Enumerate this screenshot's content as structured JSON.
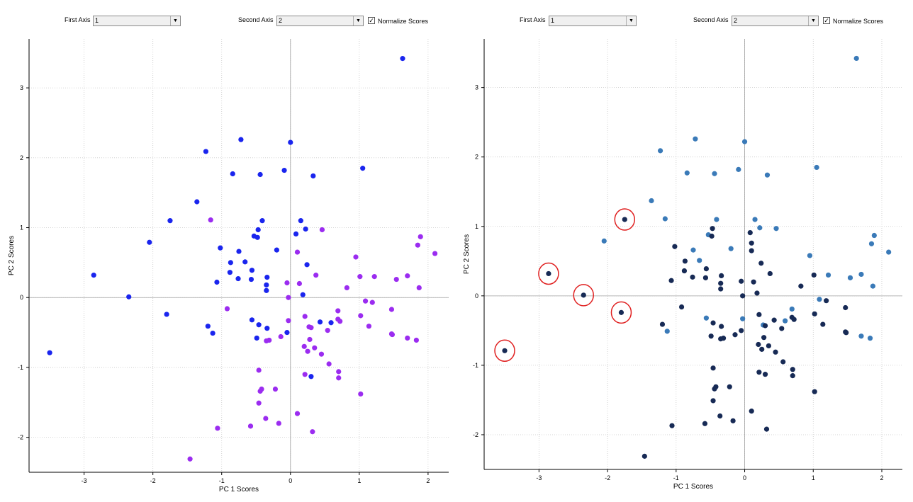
{
  "panels": [
    {
      "controls": {
        "first_axis_label": "First Axis",
        "first_axis_value": "1",
        "second_axis_label": "Second Axis",
        "second_axis_value": "2",
        "normalize_label": "Normalize Scores",
        "normalize_checked": true
      }
    },
    {
      "controls": {
        "first_axis_label": "First Axis",
        "first_axis_value": "1",
        "second_axis_label": "Second Axis",
        "second_axis_value": "2",
        "normalize_label": "Normalize Scores",
        "normalize_checked": true
      }
    }
  ],
  "chart_data": [
    {
      "type": "scatter",
      "title": "",
      "xlabel": "PC 1 Scores",
      "ylabel": "PC 2 Scores",
      "xlim": [
        -3.8,
        2.3
      ],
      "ylim": [
        -2.5,
        3.7
      ],
      "xticks": [
        -3,
        -2,
        -1,
        0,
        1,
        2
      ],
      "yticks": [
        -2,
        -1,
        0,
        1,
        2,
        3
      ],
      "grid": true,
      "colors": {
        "group_a": "#1a25ee",
        "group_b": "#9b2cf0"
      },
      "points": [
        {
          "x": 1.63,
          "y": 3.42,
          "g": "a"
        },
        {
          "x": -0.72,
          "y": 2.26,
          "g": "a"
        },
        {
          "x": 0.0,
          "y": 2.22,
          "g": "a"
        },
        {
          "x": -1.23,
          "y": 2.09,
          "g": "a"
        },
        {
          "x": 1.05,
          "y": 1.85,
          "g": "a"
        },
        {
          "x": -0.84,
          "y": 1.77,
          "g": "a"
        },
        {
          "x": -0.44,
          "y": 1.76,
          "g": "a"
        },
        {
          "x": -0.09,
          "y": 1.82,
          "g": "a"
        },
        {
          "x": 0.33,
          "y": 1.74,
          "g": "a"
        },
        {
          "x": -1.36,
          "y": 1.37,
          "g": "a"
        },
        {
          "x": -1.75,
          "y": 1.1,
          "g": "a"
        },
        {
          "x": -0.41,
          "y": 1.1,
          "g": "a"
        },
        {
          "x": 0.15,
          "y": 1.1,
          "g": "a"
        },
        {
          "x": -0.47,
          "y": 0.97,
          "g": "a"
        },
        {
          "x": 0.22,
          "y": 0.98,
          "g": "a"
        },
        {
          "x": 0.08,
          "y": 0.91,
          "g": "a"
        },
        {
          "x": -0.53,
          "y": 0.88,
          "g": "a"
        },
        {
          "x": -0.48,
          "y": 0.86,
          "g": "a"
        },
        {
          "x": -2.05,
          "y": 0.79,
          "g": "a"
        },
        {
          "x": -1.02,
          "y": 0.71,
          "g": "a"
        },
        {
          "x": -0.2,
          "y": 0.68,
          "g": "a"
        },
        {
          "x": -0.75,
          "y": 0.66,
          "g": "a"
        },
        {
          "x": -0.66,
          "y": 0.51,
          "g": "a"
        },
        {
          "x": -0.87,
          "y": 0.5,
          "g": "a"
        },
        {
          "x": 0.24,
          "y": 0.47,
          "g": "a"
        },
        {
          "x": -0.56,
          "y": 0.39,
          "g": "a"
        },
        {
          "x": -0.88,
          "y": 0.36,
          "g": "a"
        },
        {
          "x": -2.86,
          "y": 0.32,
          "g": "a"
        },
        {
          "x": -0.34,
          "y": 0.29,
          "g": "a"
        },
        {
          "x": -0.76,
          "y": 0.27,
          "g": "a"
        },
        {
          "x": -0.57,
          "y": 0.26,
          "g": "a"
        },
        {
          "x": -1.07,
          "y": 0.22,
          "g": "a"
        },
        {
          "x": -0.35,
          "y": 0.18,
          "g": "a"
        },
        {
          "x": -0.35,
          "y": 0.1,
          "g": "a"
        },
        {
          "x": 0.18,
          "y": 0.04,
          "g": "a"
        },
        {
          "x": -2.35,
          "y": 0.01,
          "g": "a"
        },
        {
          "x": -1.8,
          "y": -0.24,
          "g": "a"
        },
        {
          "x": -0.56,
          "y": -0.32,
          "g": "a"
        },
        {
          "x": 0.43,
          "y": -0.35,
          "g": "a"
        },
        {
          "x": 0.59,
          "y": -0.36,
          "g": "a"
        },
        {
          "x": -0.46,
          "y": -0.39,
          "g": "a"
        },
        {
          "x": -1.2,
          "y": -0.41,
          "g": "a"
        },
        {
          "x": -0.34,
          "y": -0.44,
          "g": "a"
        },
        {
          "x": -0.05,
          "y": -0.5,
          "g": "a"
        },
        {
          "x": -1.13,
          "y": -0.51,
          "g": "a"
        },
        {
          "x": -0.49,
          "y": -0.58,
          "g": "a"
        },
        {
          "x": -3.5,
          "y": -0.79,
          "g": "a"
        },
        {
          "x": 0.3,
          "y": -1.13,
          "g": "a"
        },
        {
          "x": -1.16,
          "y": 1.11,
          "g": "b"
        },
        {
          "x": 0.46,
          "y": 0.97,
          "g": "b"
        },
        {
          "x": 1.89,
          "y": 0.87,
          "g": "b"
        },
        {
          "x": 1.85,
          "y": 0.75,
          "g": "b"
        },
        {
          "x": 0.1,
          "y": 0.65,
          "g": "b"
        },
        {
          "x": 2.1,
          "y": 0.63,
          "g": "b"
        },
        {
          "x": 0.95,
          "y": 0.58,
          "g": "b"
        },
        {
          "x": 0.37,
          "y": 0.32,
          "g": "b"
        },
        {
          "x": 1.7,
          "y": 0.31,
          "g": "b"
        },
        {
          "x": 1.01,
          "y": 0.3,
          "g": "b"
        },
        {
          "x": 1.22,
          "y": 0.3,
          "g": "b"
        },
        {
          "x": 1.54,
          "y": 0.26,
          "g": "b"
        },
        {
          "x": -0.05,
          "y": 0.21,
          "g": "b"
        },
        {
          "x": 0.13,
          "y": 0.2,
          "g": "b"
        },
        {
          "x": 0.82,
          "y": 0.14,
          "g": "b"
        },
        {
          "x": 1.87,
          "y": 0.14,
          "g": "b"
        },
        {
          "x": -0.03,
          "y": 0.0,
          "g": "b"
        },
        {
          "x": 1.09,
          "y": -0.05,
          "g": "b"
        },
        {
          "x": 1.19,
          "y": -0.07,
          "g": "b"
        },
        {
          "x": -0.92,
          "y": -0.16,
          "g": "b"
        },
        {
          "x": 1.47,
          "y": -0.17,
          "g": "b"
        },
        {
          "x": 0.69,
          "y": -0.19,
          "g": "b"
        },
        {
          "x": 1.02,
          "y": -0.26,
          "g": "b"
        },
        {
          "x": 0.21,
          "y": -0.27,
          "g": "b"
        },
        {
          "x": 0.69,
          "y": -0.31,
          "g": "b"
        },
        {
          "x": -0.03,
          "y": -0.33,
          "g": "b"
        },
        {
          "x": 0.72,
          "y": -0.34,
          "g": "b"
        },
        {
          "x": 0.27,
          "y": -0.42,
          "g": "b"
        },
        {
          "x": 0.3,
          "y": -0.43,
          "g": "b"
        },
        {
          "x": 1.14,
          "y": -0.41,
          "g": "b"
        },
        {
          "x": 0.54,
          "y": -0.47,
          "g": "b"
        },
        {
          "x": 1.47,
          "y": -0.52,
          "g": "b"
        },
        {
          "x": 1.48,
          "y": -0.53,
          "g": "b"
        },
        {
          "x": -0.14,
          "y": -0.56,
          "g": "b"
        },
        {
          "x": 1.7,
          "y": -0.58,
          "g": "b"
        },
        {
          "x": 0.28,
          "y": -0.6,
          "g": "b"
        },
        {
          "x": 1.83,
          "y": -0.61,
          "g": "b"
        },
        {
          "x": -0.31,
          "y": -0.61,
          "g": "b"
        },
        {
          "x": -0.35,
          "y": -0.62,
          "g": "b"
        },
        {
          "x": 0.2,
          "y": -0.7,
          "g": "b"
        },
        {
          "x": 0.35,
          "y": -0.72,
          "g": "b"
        },
        {
          "x": 0.25,
          "y": -0.77,
          "g": "b"
        },
        {
          "x": 0.45,
          "y": -0.81,
          "g": "b"
        },
        {
          "x": 0.56,
          "y": -0.95,
          "g": "b"
        },
        {
          "x": -0.46,
          "y": -1.04,
          "g": "b"
        },
        {
          "x": 0.7,
          "y": -1.06,
          "g": "b"
        },
        {
          "x": 0.21,
          "y": -1.1,
          "g": "b"
        },
        {
          "x": 0.7,
          "y": -1.15,
          "g": "b"
        },
        {
          "x": -0.22,
          "y": -1.31,
          "g": "b"
        },
        {
          "x": -0.42,
          "y": -1.31,
          "g": "b"
        },
        {
          "x": -0.44,
          "y": -1.34,
          "g": "b"
        },
        {
          "x": 1.02,
          "y": -1.38,
          "g": "b"
        },
        {
          "x": -0.46,
          "y": -1.51,
          "g": "b"
        },
        {
          "x": 0.1,
          "y": -1.66,
          "g": "b"
        },
        {
          "x": -0.36,
          "y": -1.73,
          "g": "b"
        },
        {
          "x": -0.17,
          "y": -1.8,
          "g": "b"
        },
        {
          "x": -0.58,
          "y": -1.84,
          "g": "b"
        },
        {
          "x": -1.06,
          "y": -1.87,
          "g": "b"
        },
        {
          "x": 0.32,
          "y": -1.92,
          "g": "b"
        },
        {
          "x": -1.46,
          "y": -2.31,
          "g": "b"
        }
      ]
    },
    {
      "type": "scatter",
      "title": "",
      "xlabel": "PC 1 Scores",
      "ylabel": "PC 2 Scores",
      "xlim": [
        -3.8,
        2.3
      ],
      "ylim": [
        -2.5,
        3.7
      ],
      "xticks": [
        -3,
        -2,
        -1,
        0,
        1,
        2
      ],
      "yticks": [
        -2,
        -1,
        0,
        1,
        2,
        3
      ],
      "grid": true,
      "colors": {
        "group_a": "#3a7ab8",
        "group_b": "#172a55",
        "circle": "#e02020"
      },
      "points": [
        {
          "x": 1.63,
          "y": 3.42,
          "g": "a"
        },
        {
          "x": -0.72,
          "y": 2.26,
          "g": "a"
        },
        {
          "x": 0.0,
          "y": 2.22,
          "g": "a"
        },
        {
          "x": -1.23,
          "y": 2.09,
          "g": "a"
        },
        {
          "x": 1.05,
          "y": 1.85,
          "g": "a"
        },
        {
          "x": -0.84,
          "y": 1.77,
          "g": "a"
        },
        {
          "x": -0.44,
          "y": 1.76,
          "g": "a"
        },
        {
          "x": -0.09,
          "y": 1.82,
          "g": "a"
        },
        {
          "x": 0.33,
          "y": 1.74,
          "g": "a"
        },
        {
          "x": -1.36,
          "y": 1.37,
          "g": "a"
        },
        {
          "x": -1.16,
          "y": 1.11,
          "g": "a"
        },
        {
          "x": -0.41,
          "y": 1.1,
          "g": "a"
        },
        {
          "x": 0.15,
          "y": 1.1,
          "g": "a"
        },
        {
          "x": 0.46,
          "y": 0.97,
          "g": "a"
        },
        {
          "x": 0.22,
          "y": 0.98,
          "g": "a"
        },
        {
          "x": -0.53,
          "y": 0.88,
          "g": "a"
        },
        {
          "x": 1.89,
          "y": 0.87,
          "g": "a"
        },
        {
          "x": -2.05,
          "y": 0.79,
          "g": "a"
        },
        {
          "x": 1.85,
          "y": 0.75,
          "g": "a"
        },
        {
          "x": -0.2,
          "y": 0.68,
          "g": "a"
        },
        {
          "x": -0.75,
          "y": 0.66,
          "g": "a"
        },
        {
          "x": 2.1,
          "y": 0.63,
          "g": "a"
        },
        {
          "x": 0.95,
          "y": 0.58,
          "g": "a"
        },
        {
          "x": -0.66,
          "y": 0.51,
          "g": "a"
        },
        {
          "x": 1.7,
          "y": 0.31,
          "g": "a"
        },
        {
          "x": 1.22,
          "y": 0.3,
          "g": "a"
        },
        {
          "x": 1.54,
          "y": 0.26,
          "g": "a"
        },
        {
          "x": 1.87,
          "y": 0.14,
          "g": "a"
        },
        {
          "x": 1.09,
          "y": -0.05,
          "g": "a"
        },
        {
          "x": -0.56,
          "y": -0.32,
          "g": "a"
        },
        {
          "x": -0.03,
          "y": -0.33,
          "g": "a"
        },
        {
          "x": 0.59,
          "y": -0.36,
          "g": "a"
        },
        {
          "x": 0.27,
          "y": -0.42,
          "g": "a"
        },
        {
          "x": -1.13,
          "y": -0.51,
          "g": "a"
        },
        {
          "x": 1.7,
          "y": -0.58,
          "g": "a"
        },
        {
          "x": 1.83,
          "y": -0.61,
          "g": "a"
        },
        {
          "x": 0.69,
          "y": -0.19,
          "g": "a"
        },
        {
          "x": -1.75,
          "y": 1.1,
          "g": "b",
          "circled": true
        },
        {
          "x": -2.86,
          "y": 0.32,
          "g": "b",
          "circled": true
        },
        {
          "x": -2.35,
          "y": 0.01,
          "g": "b",
          "circled": true
        },
        {
          "x": -1.8,
          "y": -0.24,
          "g": "b",
          "circled": true
        },
        {
          "x": -3.5,
          "y": -0.79,
          "g": "b",
          "circled": true
        },
        {
          "x": -0.47,
          "y": 0.97,
          "g": "b"
        },
        {
          "x": 0.08,
          "y": 0.91,
          "g": "b"
        },
        {
          "x": -0.48,
          "y": 0.86,
          "g": "b"
        },
        {
          "x": -1.02,
          "y": 0.71,
          "g": "b"
        },
        {
          "x": 0.1,
          "y": 0.76,
          "g": "b"
        },
        {
          "x": 0.1,
          "y": 0.65,
          "g": "b"
        },
        {
          "x": -0.87,
          "y": 0.5,
          "g": "b"
        },
        {
          "x": 0.24,
          "y": 0.47,
          "g": "b"
        },
        {
          "x": -0.56,
          "y": 0.39,
          "g": "b"
        },
        {
          "x": -0.88,
          "y": 0.36,
          "g": "b"
        },
        {
          "x": 0.37,
          "y": 0.32,
          "g": "b"
        },
        {
          "x": -0.34,
          "y": 0.29,
          "g": "b"
        },
        {
          "x": 1.01,
          "y": 0.3,
          "g": "b"
        },
        {
          "x": -0.76,
          "y": 0.27,
          "g": "b"
        },
        {
          "x": -0.57,
          "y": 0.26,
          "g": "b"
        },
        {
          "x": -1.07,
          "y": 0.22,
          "g": "b"
        },
        {
          "x": -0.05,
          "y": 0.21,
          "g": "b"
        },
        {
          "x": -0.35,
          "y": 0.18,
          "g": "b"
        },
        {
          "x": 0.13,
          "y": 0.2,
          "g": "b"
        },
        {
          "x": 0.82,
          "y": 0.14,
          "g": "b"
        },
        {
          "x": -0.35,
          "y": 0.1,
          "g": "b"
        },
        {
          "x": 0.18,
          "y": 0.04,
          "g": "b"
        },
        {
          "x": -0.03,
          "y": 0.0,
          "g": "b"
        },
        {
          "x": 1.19,
          "y": -0.07,
          "g": "b"
        },
        {
          "x": -0.92,
          "y": -0.16,
          "g": "b"
        },
        {
          "x": 1.47,
          "y": -0.17,
          "g": "b"
        },
        {
          "x": 1.02,
          "y": -0.26,
          "g": "b"
        },
        {
          "x": 0.21,
          "y": -0.27,
          "g": "b"
        },
        {
          "x": 0.69,
          "y": -0.31,
          "g": "b"
        },
        {
          "x": 0.72,
          "y": -0.34,
          "g": "b"
        },
        {
          "x": 0.43,
          "y": -0.35,
          "g": "b"
        },
        {
          "x": -0.46,
          "y": -0.39,
          "g": "b"
        },
        {
          "x": -1.2,
          "y": -0.41,
          "g": "b"
        },
        {
          "x": 0.3,
          "y": -0.43,
          "g": "b"
        },
        {
          "x": 1.14,
          "y": -0.41,
          "g": "b"
        },
        {
          "x": -0.34,
          "y": -0.44,
          "g": "b"
        },
        {
          "x": 0.54,
          "y": -0.47,
          "g": "b"
        },
        {
          "x": -0.05,
          "y": -0.5,
          "g": "b"
        },
        {
          "x": 1.47,
          "y": -0.52,
          "g": "b"
        },
        {
          "x": 1.48,
          "y": -0.53,
          "g": "b"
        },
        {
          "x": -0.14,
          "y": -0.56,
          "g": "b"
        },
        {
          "x": -0.49,
          "y": -0.58,
          "g": "b"
        },
        {
          "x": 0.28,
          "y": -0.6,
          "g": "b"
        },
        {
          "x": -0.31,
          "y": -0.61,
          "g": "b"
        },
        {
          "x": -0.35,
          "y": -0.62,
          "g": "b"
        },
        {
          "x": 0.2,
          "y": -0.7,
          "g": "b"
        },
        {
          "x": 0.35,
          "y": -0.72,
          "g": "b"
        },
        {
          "x": 0.25,
          "y": -0.77,
          "g": "b"
        },
        {
          "x": 0.45,
          "y": -0.81,
          "g": "b"
        },
        {
          "x": 0.56,
          "y": -0.95,
          "g": "b"
        },
        {
          "x": -0.46,
          "y": -1.04,
          "g": "b"
        },
        {
          "x": 0.7,
          "y": -1.06,
          "g": "b"
        },
        {
          "x": 0.21,
          "y": -1.1,
          "g": "b"
        },
        {
          "x": 0.3,
          "y": -1.13,
          "g": "b"
        },
        {
          "x": 0.7,
          "y": -1.15,
          "g": "b"
        },
        {
          "x": -0.22,
          "y": -1.31,
          "g": "b"
        },
        {
          "x": -0.42,
          "y": -1.31,
          "g": "b"
        },
        {
          "x": -0.44,
          "y": -1.34,
          "g": "b"
        },
        {
          "x": 1.02,
          "y": -1.38,
          "g": "b"
        },
        {
          "x": -0.46,
          "y": -1.51,
          "g": "b"
        },
        {
          "x": 0.1,
          "y": -1.66,
          "g": "b"
        },
        {
          "x": -0.36,
          "y": -1.73,
          "g": "b"
        },
        {
          "x": -0.17,
          "y": -1.8,
          "g": "b"
        },
        {
          "x": -0.58,
          "y": -1.84,
          "g": "b"
        },
        {
          "x": -1.06,
          "y": -1.87,
          "g": "b"
        },
        {
          "x": 0.32,
          "y": -1.92,
          "g": "b"
        },
        {
          "x": -1.46,
          "y": -2.31,
          "g": "b"
        }
      ]
    }
  ]
}
